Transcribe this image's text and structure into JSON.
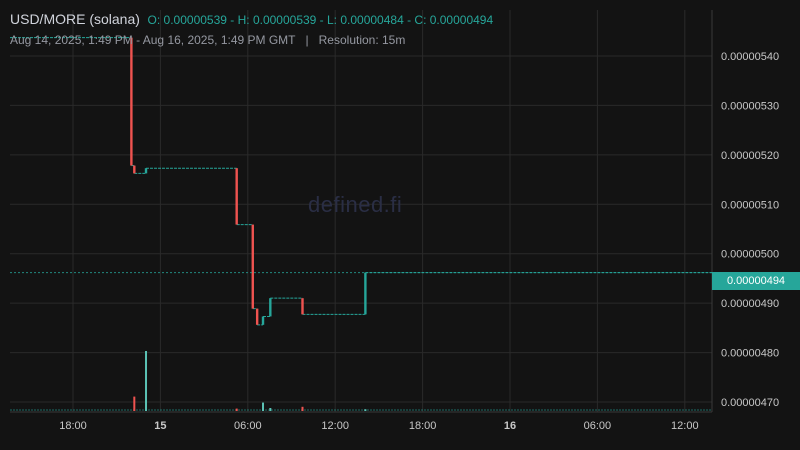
{
  "header": {
    "symbol": "USD/MORE (solana)",
    "ohlc_text": "O: 0.00000539 - H: 0.00000539 - L: 0.00000484 - C: 0.00000494",
    "range": "Aug 14, 2025, 1:49 PM - Aug 16, 2025, 1:49 PM GMT",
    "separator": "|",
    "resolution": "Resolution: 15m"
  },
  "watermark": "defined.fi",
  "chart_data": {
    "type": "line",
    "style": "stepped",
    "y_ticks": [
      "0.00000540",
      "0.00000530",
      "0.00000520",
      "0.00000510",
      "0.00000500",
      "0.00000490",
      "0.00000480",
      "0.00000470"
    ],
    "x_ticks": [
      {
        "label": "18:00",
        "bold": false
      },
      {
        "label": "15",
        "bold": true
      },
      {
        "label": "06:00",
        "bold": false
      },
      {
        "label": "12:00",
        "bold": false
      },
      {
        "label": "18:00",
        "bold": false
      },
      {
        "label": "16",
        "bold": true
      },
      {
        "label": "06:00",
        "bold": false
      },
      {
        "label": "12:00",
        "bold": false
      }
    ],
    "ylim": [
      4.673e-06,
      5.443e-06
    ],
    "xlim": [
      0,
      48
    ],
    "last_price": "0.00000494",
    "last_price_value": 4.94e-06,
    "grid": true,
    "colors": {
      "up": "#26a69a",
      "down": "#ef5350",
      "grid": "#2a2a2a",
      "axis_text": "#c8c8c8"
    },
    "steps": [
      {
        "t0": 0,
        "t1": 8.3,
        "price": 5.39e-06
      },
      {
        "t0": 8.3,
        "t1": 8.5,
        "price": 5.145e-06
      },
      {
        "t0": 8.5,
        "t1": 9.3,
        "price": 5.13e-06
      },
      {
        "t0": 9.3,
        "t1": 15.5,
        "price": 5.14e-06
      },
      {
        "t0": 15.5,
        "t1": 16.6,
        "price": 5.032e-06
      },
      {
        "t0": 16.6,
        "t1": 16.9,
        "price": 4.871e-06
      },
      {
        "t0": 16.9,
        "t1": 17.3,
        "price": 4.84e-06
      },
      {
        "t0": 17.3,
        "t1": 17.8,
        "price": 4.856e-06
      },
      {
        "t0": 17.8,
        "t1": 20.0,
        "price": 4.891e-06
      },
      {
        "t0": 20.0,
        "t1": 24.3,
        "price": 4.86e-06
      },
      {
        "t0": 24.3,
        "t1": 48,
        "price": 4.94e-06
      }
    ],
    "moves": [
      {
        "t": 8.3,
        "from": 5.39e-06,
        "to": 5.145e-06
      },
      {
        "t": 8.5,
        "from": 5.145e-06,
        "to": 5.13e-06
      },
      {
        "t": 9.3,
        "from": 5.13e-06,
        "to": 5.14e-06
      },
      {
        "t": 15.5,
        "from": 5.14e-06,
        "to": 5.032e-06
      },
      {
        "t": 16.6,
        "from": 5.032e-06,
        "to": 4.871e-06
      },
      {
        "t": 16.9,
        "from": 4.871e-06,
        "to": 4.84e-06
      },
      {
        "t": 17.3,
        "from": 4.84e-06,
        "to": 4.856e-06
      },
      {
        "t": 17.8,
        "from": 4.856e-06,
        "to": 4.891e-06
      },
      {
        "t": 20.0,
        "from": 4.891e-06,
        "to": 4.86e-06
      },
      {
        "t": 24.3,
        "from": 4.86e-06,
        "to": 4.94e-06
      }
    ],
    "volume": [
      {
        "t": 8.5,
        "v": 0.24,
        "dir": "down"
      },
      {
        "t": 9.3,
        "v": 1.0,
        "dir": "up"
      },
      {
        "t": 15.5,
        "v": 0.04,
        "dir": "down"
      },
      {
        "t": 17.3,
        "v": 0.14,
        "dir": "up"
      },
      {
        "t": 17.8,
        "v": 0.05,
        "dir": "up"
      },
      {
        "t": 20.0,
        "v": 0.07,
        "dir": "down"
      },
      {
        "t": 24.3,
        "v": 0.03,
        "dir": "up"
      }
    ]
  }
}
